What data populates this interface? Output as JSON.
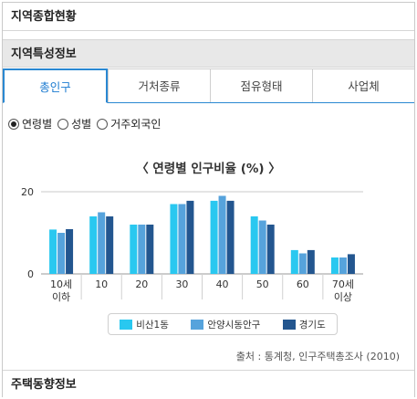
{
  "header": {
    "title": "지역종합현황"
  },
  "section": {
    "title": "지역특성정보"
  },
  "tabs": [
    {
      "label": "총인구",
      "active": true
    },
    {
      "label": "거처종류",
      "active": false
    },
    {
      "label": "점유형태",
      "active": false
    },
    {
      "label": "사업체",
      "active": false
    }
  ],
  "radios": [
    {
      "label": "연령별",
      "selected": true
    },
    {
      "label": "성별",
      "selected": false
    },
    {
      "label": "거주외국인",
      "selected": false
    }
  ],
  "chart_data": {
    "type": "bar",
    "title": "〈 연령별 인구비율 (%) 〉",
    "categories": [
      [
        "10세",
        "이하"
      ],
      [
        "10"
      ],
      [
        "20"
      ],
      [
        "30"
      ],
      [
        "40"
      ],
      [
        "50"
      ],
      [
        "60"
      ],
      [
        "70세",
        "이상"
      ]
    ],
    "yticks": [
      0,
      20
    ],
    "ylim": [
      0,
      20
    ],
    "grid": true,
    "legend_position": "bottom",
    "series": [
      {
        "name": "비산1동",
        "color": "#29c8f0",
        "values": [
          10.8,
          14,
          12,
          17,
          17.8,
          14,
          5.8,
          4
        ]
      },
      {
        "name": "안양시동안구",
        "color": "#56a3dc",
        "values": [
          10,
          15,
          12,
          17,
          19,
          13,
          5,
          4
        ]
      },
      {
        "name": "경기도",
        "color": "#23568f",
        "values": [
          10.9,
          14,
          12,
          17.8,
          17.8,
          12,
          5.8,
          4.8
        ]
      }
    ]
  },
  "source": "출처 : 통계청, 인구주택총조사 (2010)",
  "footer": {
    "title": "주택동향정보"
  }
}
